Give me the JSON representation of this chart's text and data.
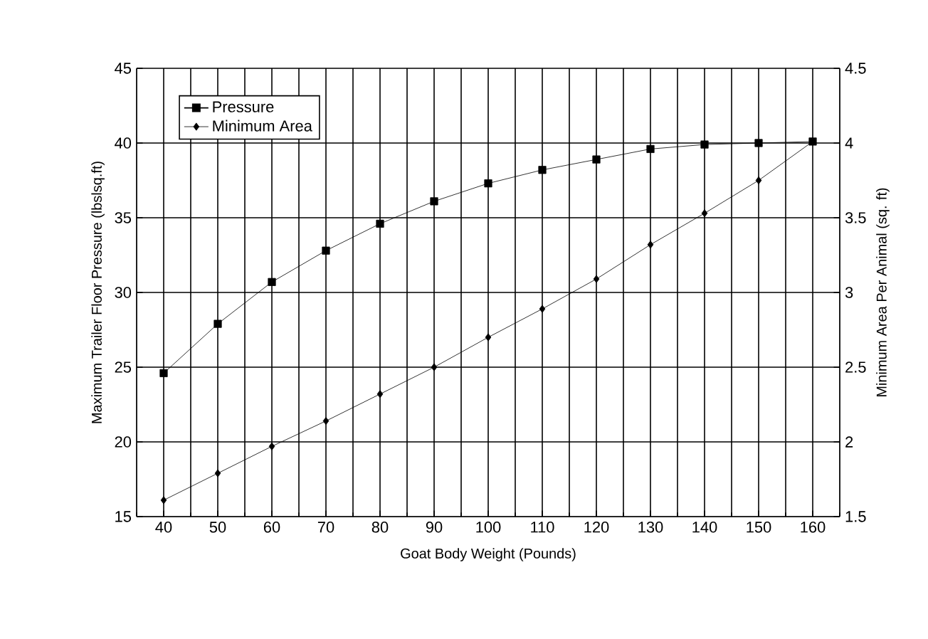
{
  "chart_data": {
    "type": "line",
    "xlabel": "Goat Body Weight (Pounds)",
    "ylabel": "Maximum Trailer Floor Pressure (lbslsq.ft)",
    "y2label": "Minimum Area Per Animal (sq. ft)",
    "categories": [
      "40",
      "50",
      "60",
      "70",
      "80",
      "90",
      "100",
      "110",
      "120",
      "130",
      "140",
      "150",
      "160"
    ],
    "series": [
      {
        "name": "Pressure",
        "color": "#000000",
        "marker": "square",
        "values": [
          24.6,
          27.9,
          30.7,
          32.8,
          34.6,
          36.1,
          37.3,
          38.2,
          38.9,
          39.6,
          39.9,
          40.0,
          40.1
        ]
      },
      {
        "name": "Minimum Area",
        "color": "#000000",
        "marker": "diamond",
        "axis": "y2",
        "values": [
          1.61,
          1.79,
          1.97,
          2.14,
          2.32,
          2.5,
          2.7,
          2.89,
          3.09,
          3.32,
          3.53,
          3.75,
          4.01
        ]
      }
    ],
    "ylim": [
      15,
      45
    ],
    "yticks": [
      15,
      20,
      25,
      30,
      35,
      40,
      45
    ],
    "y2lim": [
      1.5,
      4.5
    ],
    "y2ticks": [
      1.5,
      2,
      2.5,
      3,
      3.5,
      4,
      4.5
    ],
    "grid": true,
    "legend": "top left",
    "line_style": "solid"
  }
}
